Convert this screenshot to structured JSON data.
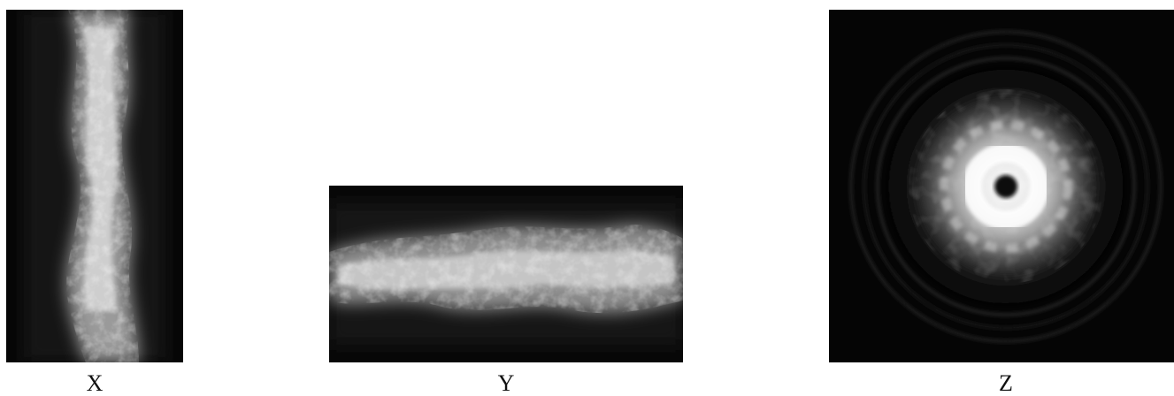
{
  "panels": [
    {
      "id": "x",
      "label": "X",
      "icon": "filament-side-projection"
    },
    {
      "id": "y",
      "label": "Y",
      "icon": "filament-horizontal-projection"
    },
    {
      "id": "z",
      "label": "Z",
      "icon": "ring-end-on-projection"
    }
  ],
  "colors": {
    "background": "#ffffff",
    "panel": "#050505",
    "bright": "#f2f2f2"
  }
}
